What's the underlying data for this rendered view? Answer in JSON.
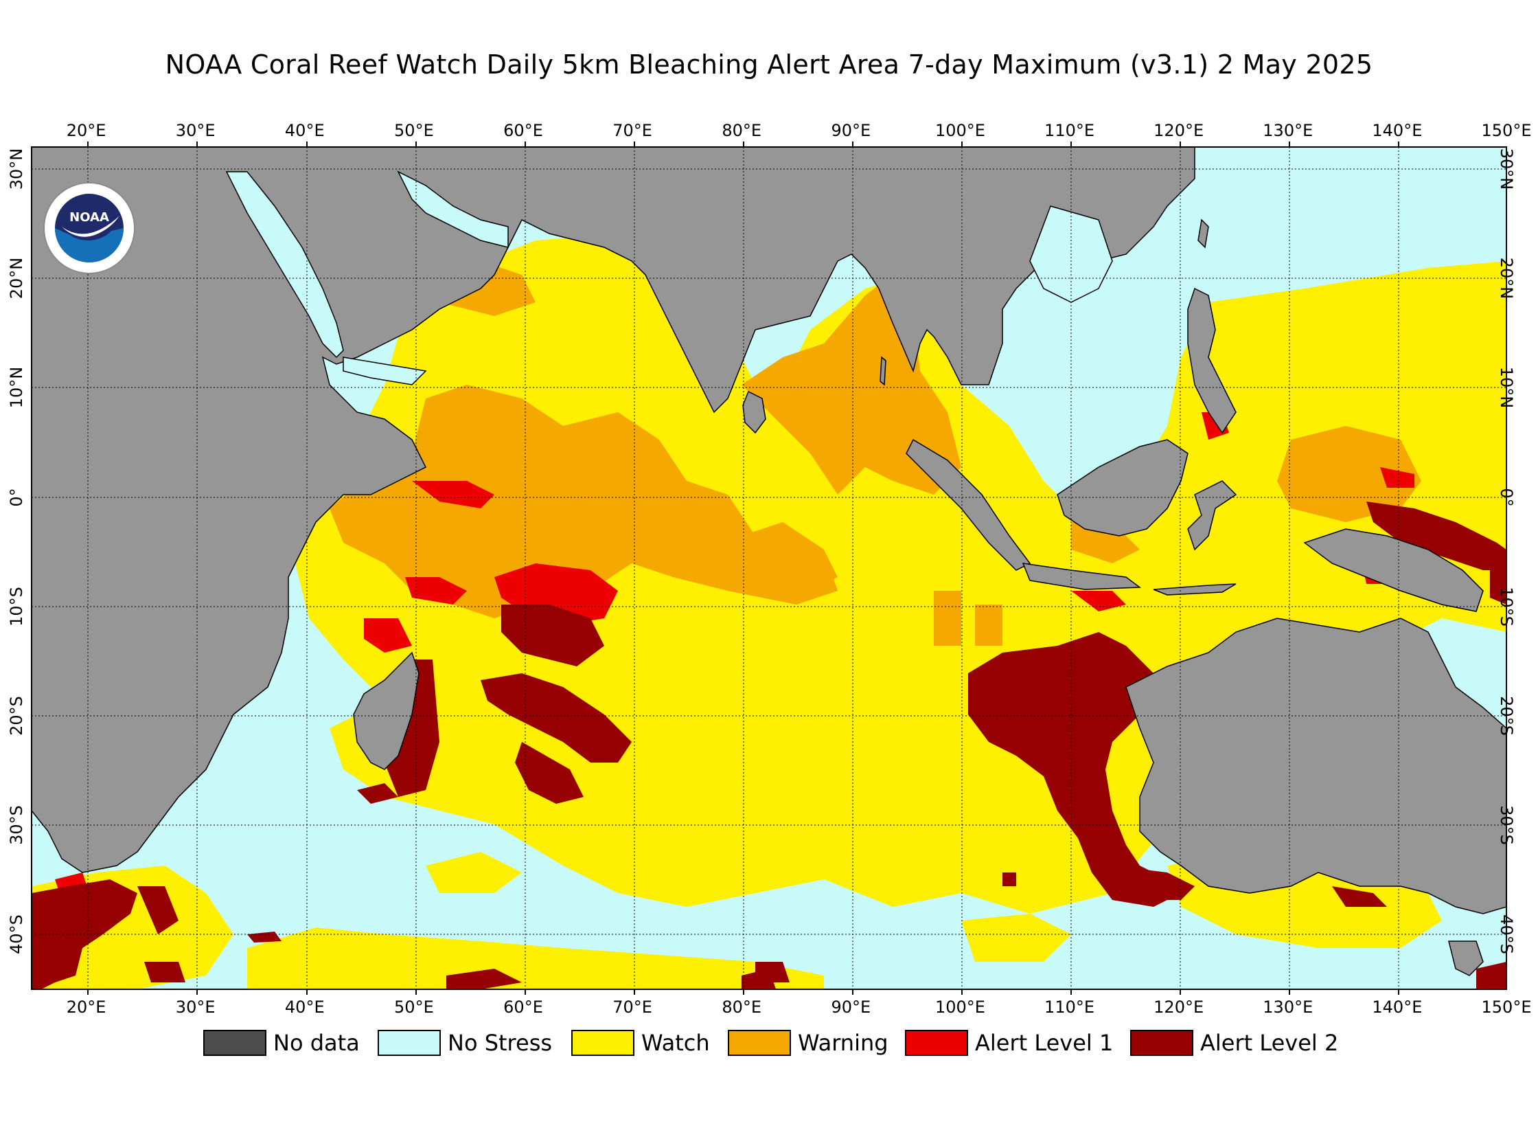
{
  "title": "NOAA Coral Reef Watch Daily 5km Bleaching Alert Area 7-day Maximum  (v3.1)   2 May 2025",
  "map": {
    "lon_range": [
      15,
      150
    ],
    "lat_range": [
      -45,
      32
    ],
    "lon_ticks": [
      "20°E",
      "30°E",
      "40°E",
      "50°E",
      "60°E",
      "70°E",
      "80°E",
      "90°E",
      "100°E",
      "110°E",
      "120°E",
      "130°E",
      "140°E",
      "150°E"
    ],
    "lon_values": [
      20,
      30,
      40,
      50,
      60,
      70,
      80,
      90,
      100,
      110,
      120,
      130,
      140,
      150
    ],
    "lat_ticks": [
      "30°N",
      "20°N",
      "10°N",
      "0°",
      "10°S",
      "20°S",
      "30°S",
      "40°S"
    ],
    "lat_values": [
      30,
      20,
      10,
      0,
      -10,
      -20,
      -30,
      -40
    ],
    "grid": "on (dotted)",
    "colors": {
      "land": "#969696",
      "no_data": "#4d4d4d",
      "no_stress": "#c8fafa",
      "watch": "#ffef00",
      "warning": "#f5a800",
      "alert1": "#ee0000",
      "alert2": "#960000"
    }
  },
  "legend": [
    {
      "label": "No data",
      "color": "#4d4d4d"
    },
    {
      "label": "No Stress",
      "color": "#c8fafa"
    },
    {
      "label": "Watch",
      "color": "#ffef00"
    },
    {
      "label": "Warning",
      "color": "#f5a800"
    },
    {
      "label": "Alert Level 1",
      "color": "#ee0000"
    },
    {
      "label": "Alert Level 2",
      "color": "#960000"
    }
  ],
  "logo": {
    "icon": "noaa-logo-icon",
    "text": "NOAA"
  }
}
